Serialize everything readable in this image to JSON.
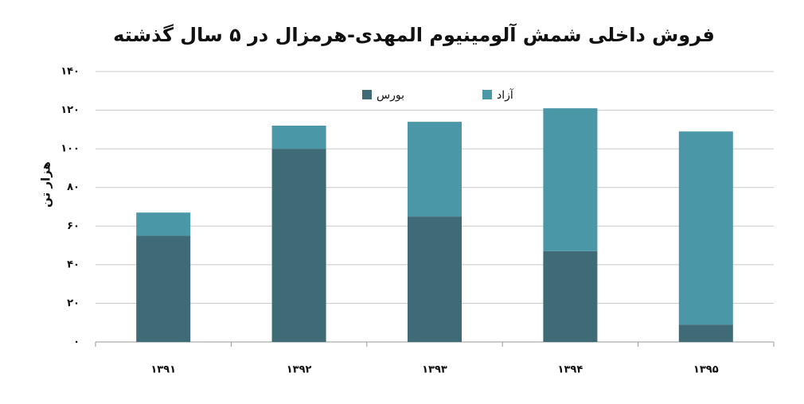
{
  "chart_data": {
    "type": "stacked_bar",
    "title": "فروش داخلی شمش آلومینیوم المهدی-هرمزال در ۵ سال گذشته",
    "y_label": "هزار تن",
    "categories": [
      "۱۳۹۱",
      "۱۳۹۲",
      "۱۳۹۳",
      "۱۳۹۴",
      "۱۳۹۵"
    ],
    "series": [
      {
        "name": "بورس",
        "color": "#3f6b77",
        "values": [
          55,
          100,
          65,
          47,
          9
        ]
      },
      {
        "name": "آزاد",
        "color": "#4a97a8",
        "values": [
          12,
          12,
          49,
          74,
          100
        ]
      }
    ],
    "ylim": [
      0,
      140
    ],
    "yticks": [
      {
        "value": 0,
        "label": "۰"
      },
      {
        "value": 20,
        "label": "۲۰"
      },
      {
        "value": 40,
        "label": "۴۰"
      },
      {
        "value": 60,
        "label": "۶۰"
      },
      {
        "value": 80,
        "label": "۸۰"
      },
      {
        "value": 100,
        "label": "۱۰۰"
      },
      {
        "value": 120,
        "label": "۱۲۰"
      },
      {
        "value": 140,
        "label": "۱۴۰"
      }
    ],
    "grid": true
  }
}
